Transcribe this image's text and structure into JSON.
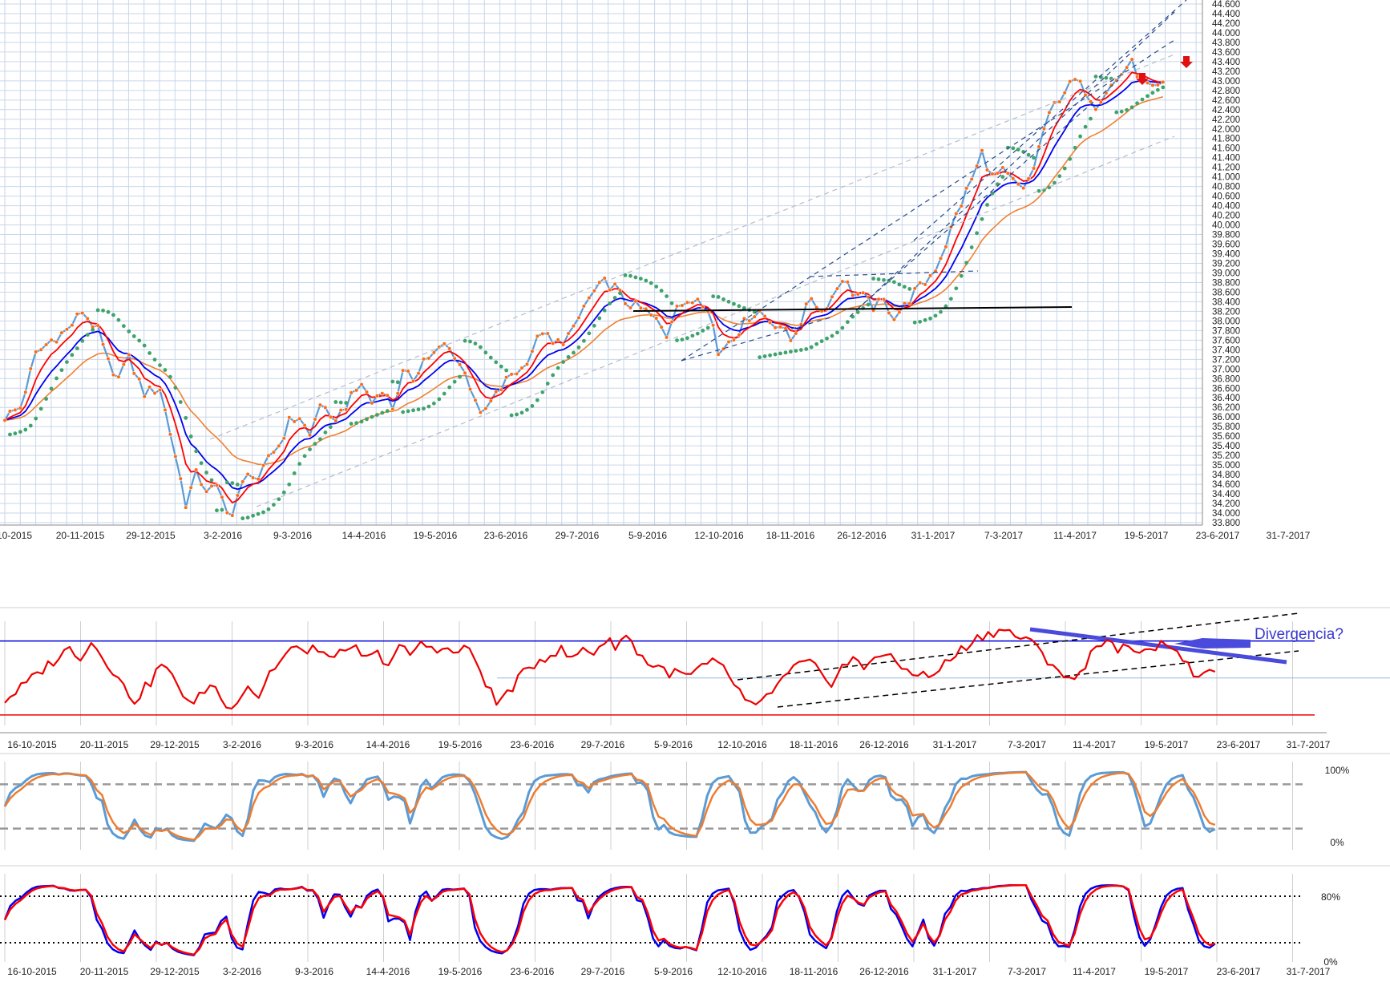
{
  "chart_data": [
    {
      "type": "line",
      "panel": "price",
      "x_dates": [
        "10-2015",
        "20-11-2015",
        "29-12-2015",
        "3-2-2016",
        "9-3-2016",
        "14-4-2016",
        "19-5-2016",
        "23-6-2016",
        "29-7-2016",
        "5-9-2016",
        "12-10-2016",
        "18-11-2016",
        "26-12-2016",
        "31-1-2017",
        "7-3-2017",
        "11-4-2017",
        "19-5-2017",
        "23-6-2017",
        "31-7-2017"
      ],
      "y_ticks": [
        "33.800",
        "34.000",
        "34.200",
        "34.400",
        "34.600",
        "34.800",
        "35.000",
        "35.200",
        "35.400",
        "35.600",
        "35.800",
        "36.000",
        "36.200",
        "36.400",
        "36.600",
        "36.800",
        "37.000",
        "37.200",
        "37.400",
        "37.600",
        "37.800",
        "38.000",
        "38.200",
        "38.400",
        "38.600",
        "38.800",
        "39.000",
        "39.200",
        "39.400",
        "39.600",
        "39.800",
        "40.000",
        "40.200",
        "40.400",
        "40.600",
        "40.800",
        "41.000",
        "41.200",
        "41.400",
        "41.600",
        "41.800",
        "42.000",
        "42.200",
        "42.400",
        "42.600",
        "42.800",
        "43.000",
        "43.200",
        "43.400",
        "43.600",
        "43.800",
        "44.000",
        "44.200",
        "44.400",
        "44.600"
      ],
      "ylim": [
        33800,
        44600
      ],
      "grid": true,
      "close_path": [
        [
          0,
          36000
        ],
        [
          3,
          36200
        ],
        [
          6,
          37300
        ],
        [
          9,
          37600
        ],
        [
          12,
          37800
        ],
        [
          15,
          38200
        ],
        [
          18,
          37800
        ],
        [
          21,
          36800
        ],
        [
          24,
          37200
        ],
        [
          27,
          36500
        ],
        [
          30,
          36600
        ],
        [
          33,
          35200
        ],
        [
          35,
          34200
        ],
        [
          37,
          34800
        ],
        [
          39,
          34500
        ],
        [
          41,
          34500
        ],
        [
          43,
          34100
        ],
        [
          44,
          33950
        ],
        [
          45,
          34300
        ],
        [
          47,
          34900
        ],
        [
          49,
          34600
        ],
        [
          51,
          35200
        ],
        [
          53,
          35400
        ],
        [
          55,
          35900
        ],
        [
          57,
          36000
        ],
        [
          59,
          35600
        ],
        [
          61,
          36300
        ],
        [
          63,
          35900
        ],
        [
          65,
          36100
        ],
        [
          67,
          36400
        ],
        [
          69,
          36700
        ],
        [
          71,
          36300
        ],
        [
          73,
          36600
        ],
        [
          75,
          36200
        ],
        [
          77,
          36900
        ],
        [
          79,
          36800
        ],
        [
          81,
          37200
        ],
        [
          83,
          37300
        ],
        [
          85,
          37500
        ],
        [
          87,
          37300
        ],
        [
          89,
          36900
        ],
        [
          91,
          36400
        ],
        [
          92,
          36000
        ],
        [
          94,
          36300
        ],
        [
          96,
          36600
        ],
        [
          98,
          36900
        ],
        [
          100,
          37000
        ],
        [
          102,
          37400
        ],
        [
          104,
          37800
        ],
        [
          106,
          37500
        ],
        [
          108,
          37600
        ],
        [
          110,
          37800
        ],
        [
          112,
          38300
        ],
        [
          114,
          38600
        ],
        [
          116,
          38800
        ],
        [
          118,
          38700
        ],
        [
          120,
          38400
        ],
        [
          122,
          38300
        ],
        [
          124,
          38200
        ],
        [
          126,
          38000
        ],
        [
          128,
          37700
        ],
        [
          130,
          38400
        ],
        [
          132,
          38300
        ],
        [
          134,
          38500
        ],
        [
          136,
          38300
        ],
        [
          137,
          37900
        ],
        [
          138,
          37300
        ],
        [
          140,
          37600
        ],
        [
          142,
          37800
        ],
        [
          144,
          38100
        ],
        [
          146,
          38200
        ],
        [
          148,
          38000
        ],
        [
          150,
          37900
        ],
        [
          152,
          37600
        ],
        [
          154,
          38000
        ],
        [
          156,
          38500
        ],
        [
          158,
          38200
        ],
        [
          160,
          38500
        ],
        [
          162,
          38900
        ],
        [
          164,
          38600
        ],
        [
          166,
          38500
        ],
        [
          168,
          38300
        ],
        [
          170,
          38400
        ],
        [
          172,
          38100
        ],
        [
          174,
          38300
        ],
        [
          176,
          38600
        ],
        [
          178,
          38800
        ],
        [
          180,
          39100
        ],
        [
          182,
          39600
        ],
        [
          184,
          40200
        ],
        [
          186,
          40700
        ],
        [
          188,
          41200
        ],
        [
          189,
          41500
        ],
        [
          191,
          41000
        ],
        [
          193,
          41100
        ],
        [
          195,
          40900
        ],
        [
          197,
          40700
        ],
        [
          199,
          41200
        ],
        [
          201,
          42000
        ],
        [
          203,
          42500
        ],
        [
          205,
          42800
        ],
        [
          207,
          43000
        ],
        [
          209,
          42800
        ],
        [
          211,
          42500
        ],
        [
          213,
          42800
        ],
        [
          215,
          43000
        ],
        [
          217,
          43300
        ],
        [
          218,
          43350
        ],
        [
          220,
          43000
        ],
        [
          222,
          42800
        ],
        [
          224,
          42900
        ]
      ],
      "x_index_range": [
        0,
        240
      ],
      "series": [
        {
          "name": "",
          "color": "#5b9bd5",
          "kind": "close-line"
        },
        {
          "name": "",
          "color": "#ff7a1a",
          "kind": "close-markers"
        },
        {
          "name": "",
          "color": "#ff0000",
          "kind": "ema-fast"
        },
        {
          "name": "",
          "color": "#0000ee",
          "kind": "ema-mid"
        },
        {
          "name": "",
          "color": "#f08030",
          "kind": "ema-slow"
        },
        {
          "name": "",
          "color": "#3fa36b",
          "kind": "parabolic-sar"
        }
      ],
      "annotations": [
        "red down arrows near 42.9 and 43.3 (May-Jun 2017)",
        "horizontal resistance line near 38.8-38.9",
        "dashed trend channels"
      ]
    },
    {
      "type": "line",
      "panel": "rsi",
      "x_dates": [
        "16-10-2015",
        "20-11-2015",
        "29-12-2015",
        "3-2-2016",
        "9-3-2016",
        "14-4-2016",
        "19-5-2016",
        "23-6-2016",
        "29-7-2016",
        "5-9-2016",
        "12-10-2016",
        "18-11-2016",
        "26-12-2016",
        "31-1-2017",
        "7-3-2017",
        "11-4-2017",
        "19-5-2017",
        "23-6-2017",
        "31-7-2017"
      ],
      "upper_level": 70,
      "lower_level": 30,
      "mid_level": 50,
      "ylim": [
        20,
        85
      ],
      "annotation_text": "Divergencia?",
      "values": [
        [
          0,
          38
        ],
        [
          4,
          47
        ],
        [
          8,
          57
        ],
        [
          12,
          66
        ],
        [
          14,
          62
        ],
        [
          16,
          69
        ],
        [
          18,
          63
        ],
        [
          20,
          54
        ],
        [
          22,
          45
        ],
        [
          24,
          38
        ],
        [
          27,
          48
        ],
        [
          29,
          58
        ],
        [
          31,
          50
        ],
        [
          33,
          42
        ],
        [
          35,
          35
        ],
        [
          37,
          44
        ],
        [
          39,
          46
        ],
        [
          41,
          33
        ],
        [
          43,
          39
        ],
        [
          45,
          46
        ],
        [
          47,
          40
        ],
        [
          49,
          53
        ],
        [
          51,
          59
        ],
        [
          53,
          66
        ],
        [
          55,
          64
        ],
        [
          57,
          67
        ],
        [
          59,
          61
        ],
        [
          61,
          64
        ],
        [
          63,
          62
        ],
        [
          65,
          66
        ],
        [
          67,
          60
        ],
        [
          69,
          63
        ],
        [
          71,
          58
        ],
        [
          73,
          66
        ],
        [
          75,
          63
        ],
        [
          77,
          68
        ],
        [
          79,
          67
        ],
        [
          81,
          66
        ],
        [
          83,
          63
        ],
        [
          85,
          67
        ],
        [
          87,
          60
        ],
        [
          89,
          48
        ],
        [
          91,
          36
        ],
        [
          93,
          42
        ],
        [
          95,
          49
        ],
        [
          97,
          55
        ],
        [
          99,
          60
        ],
        [
          101,
          63
        ],
        [
          103,
          65
        ],
        [
          105,
          60
        ],
        [
          107,
          66
        ],
        [
          109,
          64
        ],
        [
          111,
          70
        ],
        [
          113,
          68
        ],
        [
          115,
          73
        ],
        [
          117,
          65
        ],
        [
          119,
          58
        ],
        [
          121,
          56
        ],
        [
          123,
          53
        ],
        [
          125,
          52
        ],
        [
          127,
          51
        ],
        [
          129,
          56
        ],
        [
          131,
          58
        ],
        [
          133,
          55
        ],
        [
          135,
          47
        ],
        [
          137,
          38
        ],
        [
          139,
          33
        ],
        [
          141,
          40
        ],
        [
          143,
          46
        ],
        [
          145,
          52
        ],
        [
          147,
          57
        ],
        [
          149,
          58
        ],
        [
          151,
          52
        ],
        [
          153,
          48
        ],
        [
          155,
          56
        ],
        [
          157,
          60
        ],
        [
          159,
          55
        ],
        [
          161,
          63
        ],
        [
          163,
          62
        ],
        [
          165,
          58
        ],
        [
          167,
          54
        ],
        [
          169,
          53
        ],
        [
          171,
          50
        ],
        [
          173,
          55
        ],
        [
          175,
          60
        ],
        [
          177,
          65
        ],
        [
          179,
          70
        ],
        [
          181,
          73
        ],
        [
          183,
          75
        ],
        [
          185,
          76
        ],
        [
          187,
          73
        ],
        [
          189,
          71
        ],
        [
          191,
          66
        ],
        [
          193,
          60
        ],
        [
          195,
          55
        ],
        [
          197,
          48
        ],
        [
          199,
          52
        ],
        [
          201,
          64
        ],
        [
          203,
          70
        ],
        [
          205,
          67
        ],
        [
          207,
          66
        ],
        [
          209,
          63
        ],
        [
          211,
          68
        ],
        [
          213,
          66
        ],
        [
          215,
          70
        ],
        [
          217,
          66
        ],
        [
          218,
          58
        ],
        [
          220,
          53
        ],
        [
          222,
          52
        ],
        [
          224,
          51
        ]
      ]
    },
    {
      "type": "line",
      "panel": "stochastic-1",
      "x_dates": [],
      "ytick_labels": [
        "100%",
        "0%"
      ],
      "levels": [
        80,
        20
      ],
      "ylim": [
        0,
        100
      ],
      "series": [
        {
          "name": "",
          "color": "#5b9bd5"
        },
        {
          "name": "",
          "color": "#ed7d31"
        }
      ]
    },
    {
      "type": "line",
      "panel": "stochastic-2",
      "x_dates": [
        "16-10-2015",
        "20-11-2015",
        "29-12-2015",
        "3-2-2016",
        "9-3-2016",
        "14-4-2016",
        "19-5-2016",
        "23-6-2016",
        "29-7-2016",
        "5-9-2016",
        "12-10-2016",
        "18-11-2016",
        "26-12-2016",
        "31-1-2017",
        "7-3-2017",
        "11-4-2017",
        "19-5-2017",
        "23-6-2017",
        "31-7-2017"
      ],
      "ytick_labels": [
        "80%",
        "0%"
      ],
      "levels": [
        80,
        20
      ],
      "ylim": [
        0,
        100
      ],
      "series": [
        {
          "name": "",
          "color": "#0000ee"
        },
        {
          "name": "",
          "color": "#ff0000"
        }
      ]
    }
  ]
}
